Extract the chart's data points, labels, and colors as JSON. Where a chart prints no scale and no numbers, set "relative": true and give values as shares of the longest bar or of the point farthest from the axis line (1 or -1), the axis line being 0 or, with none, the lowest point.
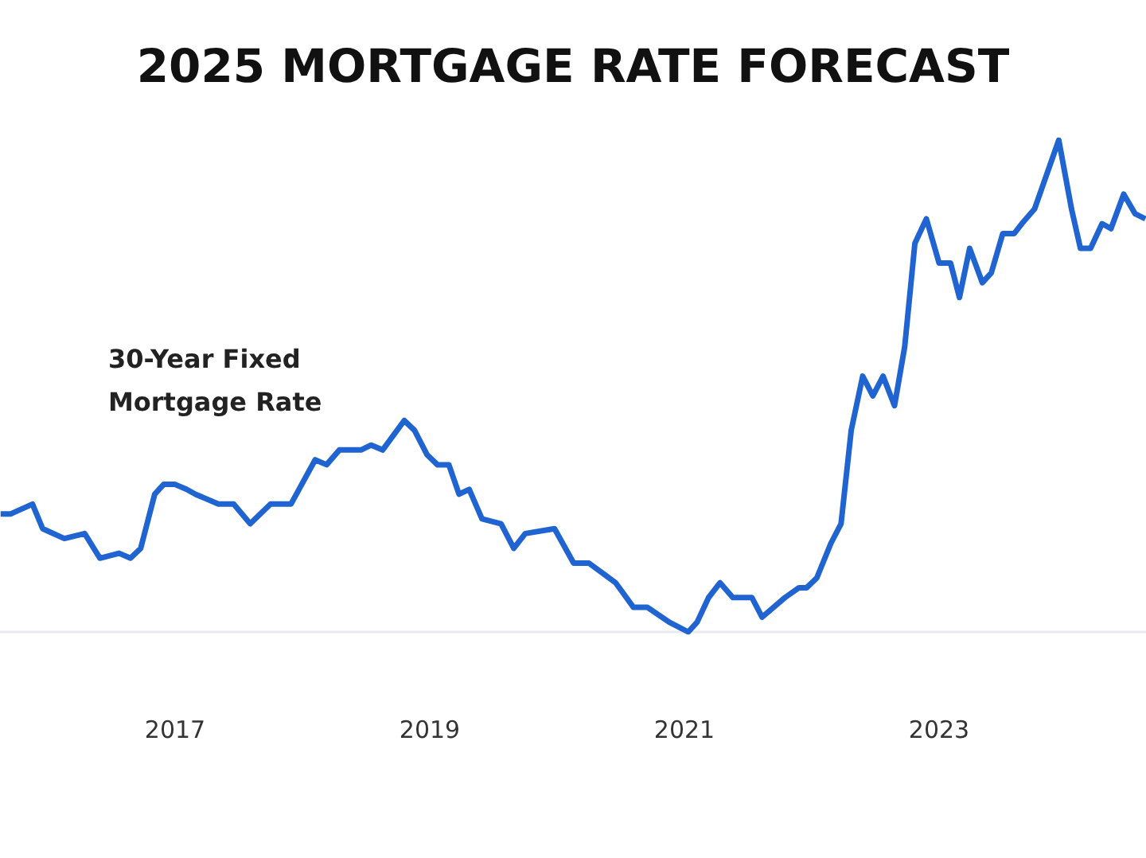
{
  "chart_data": {
    "type": "line",
    "title": "2025 MORTGAGE RATE FORECAST",
    "annotations": [
      "30-Year Fixed\nMortgage Rate"
    ],
    "relative": true,
    "xlim": [
      2015.625,
      2024.625
    ],
    "xticks": [
      2017,
      2019,
      2021,
      2023
    ],
    "marker": "none",
    "x": [
      2015.63,
      2015.71,
      2015.88,
      2015.96,
      2016.13,
      2016.29,
      2016.41,
      2016.56,
      2016.65,
      2016.73,
      2016.84,
      2016.91,
      2017.0,
      2017.09,
      2017.16,
      2017.34,
      2017.46,
      2017.59,
      2017.75,
      2017.91,
      2018.1,
      2018.19,
      2018.29,
      2018.46,
      2018.54,
      2018.63,
      2018.8,
      2018.88,
      2018.98,
      2019.06,
      2019.15,
      2019.23,
      2019.31,
      2019.41,
      2019.56,
      2019.66,
      2019.75,
      2019.98,
      2020.13,
      2020.25,
      2020.46,
      2020.6,
      2020.71,
      2020.88,
      2021.03,
      2021.1,
      2021.19,
      2021.28,
      2021.38,
      2021.53,
      2021.61,
      2021.79,
      2021.9,
      2021.96,
      2022.04,
      2022.15,
      2022.23,
      2022.31,
      2022.4,
      2022.48,
      2022.56,
      2022.65,
      2022.73,
      2022.81,
      2022.9,
      2023.0,
      2023.09,
      2023.16,
      2023.24,
      2023.34,
      2023.41,
      2023.5,
      2023.59,
      2023.65,
      2023.75,
      2023.94,
      2024.04,
      2024.11,
      2024.19,
      2024.28,
      2024.35,
      2024.45,
      2024.54,
      2024.62
    ],
    "series": [
      {
        "color": "#1f64d0",
        "values": [
          0.24,
          0.24,
          0.26,
          0.21,
          0.19,
          0.2,
          0.15,
          0.16,
          0.15,
          0.17,
          0.28,
          0.3,
          0.3,
          0.29,
          0.28,
          0.26,
          0.26,
          0.22,
          0.26,
          0.26,
          0.35,
          0.34,
          0.37,
          0.37,
          0.38,
          0.37,
          0.43,
          0.41,
          0.36,
          0.34,
          0.34,
          0.28,
          0.29,
          0.23,
          0.22,
          0.17,
          0.2,
          0.21,
          0.14,
          0.14,
          0.1,
          0.05,
          0.05,
          0.02,
          0,
          0.02,
          0.07,
          0.1,
          0.07,
          0.07,
          0.03,
          0.07,
          0.09,
          0.09,
          0.11,
          0.18,
          0.22,
          0.41,
          0.52,
          0.48,
          0.52,
          0.46,
          0.58,
          0.79,
          0.84,
          0.75,
          0.75,
          0.68,
          0.78,
          0.71,
          0.73,
          0.81,
          0.81,
          0.83,
          0.86,
          1,
          0.86,
          0.78,
          0.78,
          0.83,
          0.82,
          0.89,
          0.85,
          0.84
        ]
      }
    ]
  }
}
